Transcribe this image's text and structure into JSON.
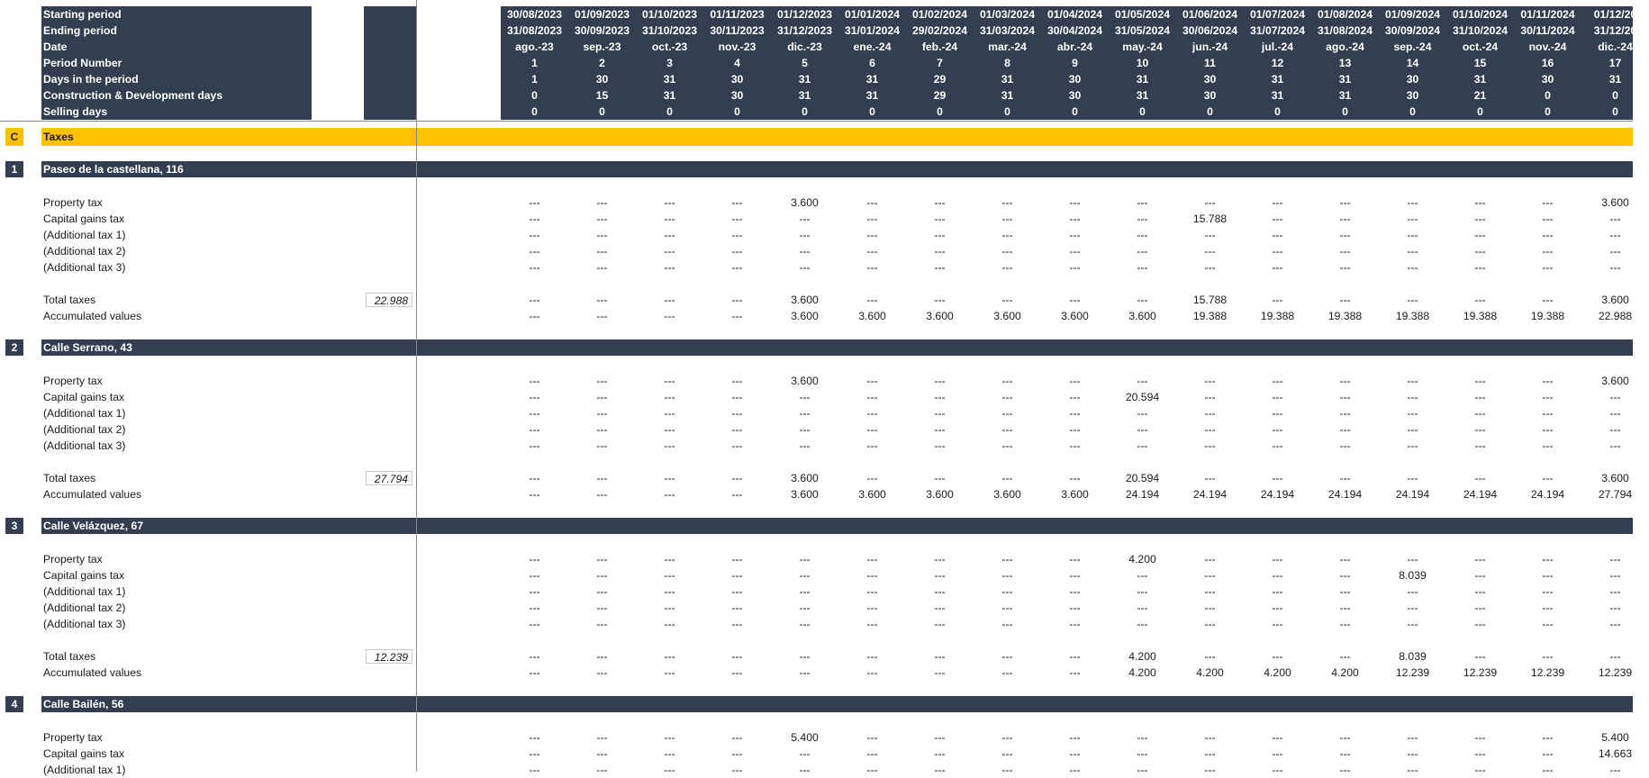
{
  "header": {
    "rows": [
      {
        "label": "Starting period",
        "values": [
          "30/08/2023",
          "01/09/2023",
          "01/10/2023",
          "01/11/2023",
          "01/12/2023",
          "01/01/2024",
          "01/02/2024",
          "01/03/2024",
          "01/04/2024",
          "01/05/2024",
          "01/06/2024",
          "01/07/2024",
          "01/08/2024",
          "01/09/2024",
          "01/10/2024",
          "01/11/2024",
          "01/12/20"
        ]
      },
      {
        "label": "Ending period",
        "values": [
          "31/08/2023",
          "30/09/2023",
          "31/10/2023",
          "30/11/2023",
          "31/12/2023",
          "31/01/2024",
          "29/02/2024",
          "31/03/2024",
          "30/04/2024",
          "31/05/2024",
          "30/06/2024",
          "31/07/2024",
          "31/08/2024",
          "30/09/2024",
          "31/10/2024",
          "30/11/2024",
          "31/12/20"
        ]
      },
      {
        "label": "Date",
        "values": [
          "ago.-23",
          "sep.-23",
          "oct.-23",
          "nov.-23",
          "dic.-23",
          "ene.-24",
          "feb.-24",
          "mar.-24",
          "abr.-24",
          "may.-24",
          "jun.-24",
          "jul.-24",
          "ago.-24",
          "sep.-24",
          "oct.-24",
          "nov.-24",
          "dic.-24"
        ]
      },
      {
        "label": "Period Number",
        "values": [
          "1",
          "2",
          "3",
          "4",
          "5",
          "6",
          "7",
          "8",
          "9",
          "10",
          "11",
          "12",
          "13",
          "14",
          "15",
          "16",
          "17"
        ]
      },
      {
        "label": "Days in the period",
        "values": [
          "1",
          "30",
          "31",
          "30",
          "31",
          "31",
          "29",
          "31",
          "30",
          "31",
          "30",
          "31",
          "31",
          "30",
          "31",
          "30",
          "31"
        ]
      },
      {
        "label": "Construction & Development days",
        "values": [
          "0",
          "15",
          "31",
          "30",
          "31",
          "31",
          "29",
          "31",
          "30",
          "31",
          "30",
          "31",
          "31",
          "30",
          "21",
          "0",
          "0"
        ]
      },
      {
        "label": "Selling days",
        "values": [
          "0",
          "0",
          "0",
          "0",
          "0",
          "0",
          "0",
          "0",
          "0",
          "0",
          "0",
          "0",
          "0",
          "0",
          "0",
          "0",
          "0"
        ]
      }
    ]
  },
  "section": {
    "marker": "C",
    "title": "Taxes"
  },
  "properties": [
    {
      "marker": "1",
      "title": "Paseo de la castellana, 116",
      "rows": [
        {
          "label": "Property tax",
          "values": [
            "---",
            "---",
            "---",
            "---",
            "3.600",
            "---",
            "---",
            "---",
            "---",
            "---",
            "---",
            "---",
            "---",
            "---",
            "---",
            "---",
            "3.600"
          ]
        },
        {
          "label": "Capital gains tax",
          "values": [
            "---",
            "---",
            "---",
            "---",
            "---",
            "---",
            "---",
            "---",
            "---",
            "---",
            "15.788",
            "---",
            "---",
            "---",
            "---",
            "---",
            "---"
          ]
        },
        {
          "label": "(Additional tax 1)",
          "values": [
            "---",
            "---",
            "---",
            "---",
            "---",
            "---",
            "---",
            "---",
            "---",
            "---",
            "---",
            "---",
            "---",
            "---",
            "---",
            "---",
            "---"
          ]
        },
        {
          "label": "(Additional tax 2)",
          "values": [
            "---",
            "---",
            "---",
            "---",
            "---",
            "---",
            "---",
            "---",
            "---",
            "---",
            "---",
            "---",
            "---",
            "---",
            "---",
            "---",
            "---"
          ]
        },
        {
          "label": "(Additional tax 3)",
          "values": [
            "---",
            "---",
            "---",
            "---",
            "---",
            "---",
            "---",
            "---",
            "---",
            "---",
            "---",
            "---",
            "---",
            "---",
            "---",
            "---",
            "---"
          ]
        }
      ],
      "total": {
        "label": "Total taxes",
        "sum": "22.988",
        "values": [
          "---",
          "---",
          "---",
          "---",
          "3.600",
          "---",
          "---",
          "---",
          "---",
          "---",
          "15.788",
          "---",
          "---",
          "---",
          "---",
          "---",
          "3.600"
        ]
      },
      "accumulated": {
        "label": "Accumulated values",
        "values": [
          "---",
          "---",
          "---",
          "---",
          "3.600",
          "3.600",
          "3.600",
          "3.600",
          "3.600",
          "3.600",
          "19.388",
          "19.388",
          "19.388",
          "19.388",
          "19.388",
          "19.388",
          "22.988"
        ]
      }
    },
    {
      "marker": "2",
      "title": "Calle Serrano, 43",
      "rows": [
        {
          "label": "Property tax",
          "values": [
            "---",
            "---",
            "---",
            "---",
            "3.600",
            "---",
            "---",
            "---",
            "---",
            "---",
            "---",
            "---",
            "---",
            "---",
            "---",
            "---",
            "3.600"
          ]
        },
        {
          "label": "Capital gains tax",
          "values": [
            "---",
            "---",
            "---",
            "---",
            "---",
            "---",
            "---",
            "---",
            "---",
            "20.594",
            "---",
            "---",
            "---",
            "---",
            "---",
            "---",
            "---"
          ]
        },
        {
          "label": "(Additional tax 1)",
          "values": [
            "---",
            "---",
            "---",
            "---",
            "---",
            "---",
            "---",
            "---",
            "---",
            "---",
            "---",
            "---",
            "---",
            "---",
            "---",
            "---",
            "---"
          ]
        },
        {
          "label": "(Additional tax 2)",
          "values": [
            "---",
            "---",
            "---",
            "---",
            "---",
            "---",
            "---",
            "---",
            "---",
            "---",
            "---",
            "---",
            "---",
            "---",
            "---",
            "---",
            "---"
          ]
        },
        {
          "label": "(Additional tax 3)",
          "values": [
            "---",
            "---",
            "---",
            "---",
            "---",
            "---",
            "---",
            "---",
            "---",
            "---",
            "---",
            "---",
            "---",
            "---",
            "---",
            "---",
            "---"
          ]
        }
      ],
      "total": {
        "label": "Total taxes",
        "sum": "27.794",
        "values": [
          "---",
          "---",
          "---",
          "---",
          "3.600",
          "---",
          "---",
          "---",
          "---",
          "20.594",
          "---",
          "---",
          "---",
          "---",
          "---",
          "---",
          "3.600"
        ]
      },
      "accumulated": {
        "label": "Accumulated values",
        "values": [
          "---",
          "---",
          "---",
          "---",
          "3.600",
          "3.600",
          "3.600",
          "3.600",
          "3.600",
          "24.194",
          "24.194",
          "24.194",
          "24.194",
          "24.194",
          "24.194",
          "24.194",
          "27.794"
        ]
      }
    },
    {
      "marker": "3",
      "title": "Calle Velázquez, 67",
      "rows": [
        {
          "label": "Property tax",
          "values": [
            "---",
            "---",
            "---",
            "---",
            "---",
            "---",
            "---",
            "---",
            "---",
            "4.200",
            "---",
            "---",
            "---",
            "---",
            "---",
            "---",
            "---"
          ]
        },
        {
          "label": "Capital gains tax",
          "values": [
            "---",
            "---",
            "---",
            "---",
            "---",
            "---",
            "---",
            "---",
            "---",
            "---",
            "---",
            "---",
            "---",
            "8.039",
            "---",
            "---",
            "---"
          ]
        },
        {
          "label": "(Additional tax 1)",
          "values": [
            "---",
            "---",
            "---",
            "---",
            "---",
            "---",
            "---",
            "---",
            "---",
            "---",
            "---",
            "---",
            "---",
            "---",
            "---",
            "---",
            "---"
          ]
        },
        {
          "label": "(Additional tax 2)",
          "values": [
            "---",
            "---",
            "---",
            "---",
            "---",
            "---",
            "---",
            "---",
            "---",
            "---",
            "---",
            "---",
            "---",
            "---",
            "---",
            "---",
            "---"
          ]
        },
        {
          "label": "(Additional tax 3)",
          "values": [
            "---",
            "---",
            "---",
            "---",
            "---",
            "---",
            "---",
            "---",
            "---",
            "---",
            "---",
            "---",
            "---",
            "---",
            "---",
            "---",
            "---"
          ]
        }
      ],
      "total": {
        "label": "Total taxes",
        "sum": "12.239",
        "values": [
          "---",
          "---",
          "---",
          "---",
          "---",
          "---",
          "---",
          "---",
          "---",
          "4.200",
          "---",
          "---",
          "---",
          "8.039",
          "---",
          "---",
          "---"
        ]
      },
      "accumulated": {
        "label": "Accumulated values",
        "values": [
          "---",
          "---",
          "---",
          "---",
          "---",
          "---",
          "---",
          "---",
          "---",
          "4.200",
          "4.200",
          "4.200",
          "4.200",
          "12.239",
          "12.239",
          "12.239",
          "12.239"
        ]
      }
    },
    {
      "marker": "4",
      "title": "Calle Bailén, 56",
      "rows": [
        {
          "label": "Property tax",
          "values": [
            "---",
            "---",
            "---",
            "---",
            "5.400",
            "---",
            "---",
            "---",
            "---",
            "---",
            "---",
            "---",
            "---",
            "---",
            "---",
            "---",
            "5.400"
          ]
        },
        {
          "label": "Capital gains tax",
          "values": [
            "---",
            "---",
            "---",
            "---",
            "---",
            "---",
            "---",
            "---",
            "---",
            "---",
            "---",
            "---",
            "---",
            "---",
            "---",
            "---",
            "14.663"
          ]
        },
        {
          "label": "(Additional tax 1)",
          "values": [
            "---",
            "---",
            "---",
            "---",
            "---",
            "---",
            "---",
            "---",
            "---",
            "---",
            "---",
            "---",
            "---",
            "---",
            "---",
            "---",
            "---"
          ]
        }
      ]
    }
  ]
}
